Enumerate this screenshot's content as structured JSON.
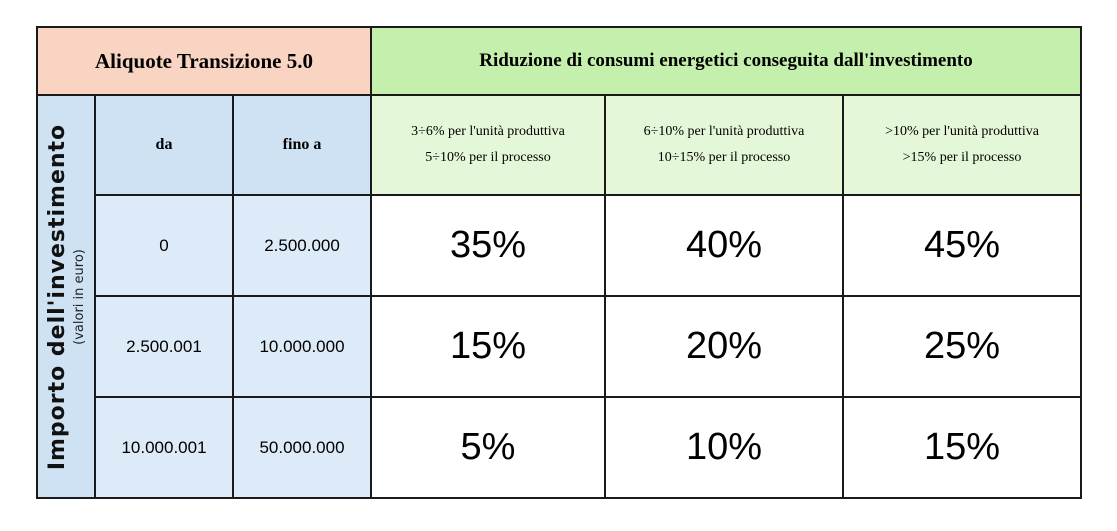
{
  "table": {
    "header": {
      "aliquote_title": "Aliquote Transizione 5.0",
      "riduzione_title": "Riduzione di consumi energetici conseguita dall'investimento"
    },
    "side_label": {
      "main": "Importo dell'investimento",
      "sub": "(valori in euro)"
    },
    "range_headers": {
      "from": "da",
      "to": "fino a"
    },
    "levels": [
      {
        "line1": "3÷6% per l'unità produttiva",
        "line2": "5÷10% per il processo"
      },
      {
        "line1": "6÷10% per l'unità produttiva",
        "line2": "10÷15% per il processo"
      },
      {
        "line1": ">10% per l'unità produttiva",
        "line2": ">15% per il processo"
      }
    ],
    "rows": [
      {
        "from": "0",
        "to": "2.500.000",
        "rates": [
          "35%",
          "40%",
          "45%"
        ]
      },
      {
        "from": "2.500.001",
        "to": "10.000.000",
        "rates": [
          "15%",
          "20%",
          "25%"
        ]
      },
      {
        "from": "10.000.001",
        "to": "50.000.000",
        "rates": [
          "5%",
          "10%",
          "15%"
        ]
      }
    ]
  },
  "colors": {
    "aliquote_header_bg": "#f9d4c2",
    "riduzione_header_bg": "#c4efac",
    "range_header_bg": "#cfe2f4",
    "level_header_bg": "#e4f7d8",
    "border": "#1a1a1a"
  }
}
